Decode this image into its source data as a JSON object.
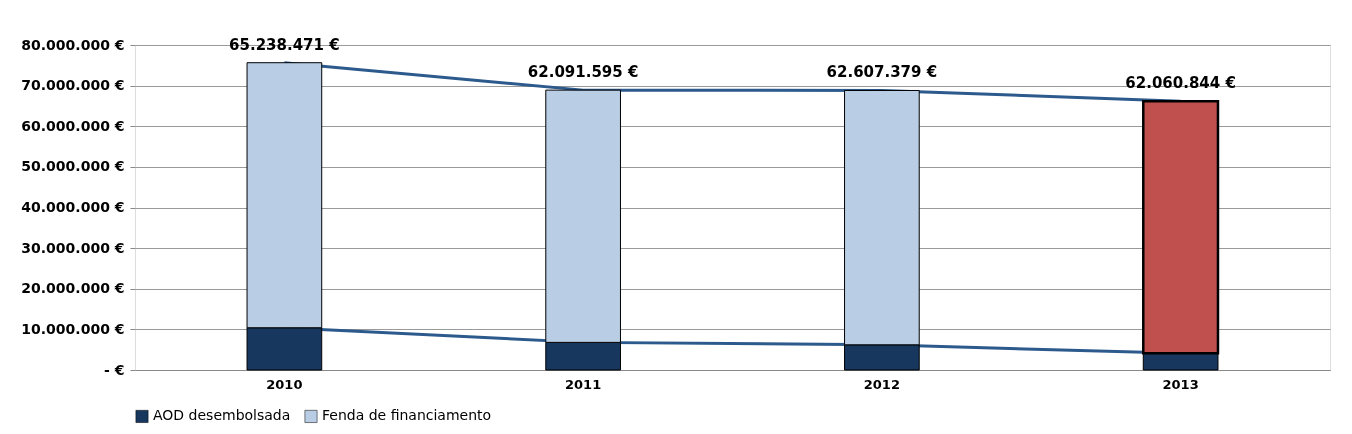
{
  "chart_data": {
    "type": "bar",
    "stacked": true,
    "categories": [
      "2010",
      "2011",
      "2012",
      "2013"
    ],
    "series": [
      {
        "name": "AOD desembolsada",
        "color": "#17375e",
        "values": [
          10400000,
          6800000,
          6200000,
          4100000
        ]
      },
      {
        "name": "Fenda de financiamento",
        "color": "#b9cde5",
        "colors": [
          "#b9cde5",
          "#b9cde5",
          "#b9cde5",
          "#c0504d"
        ],
        "values": [
          65238471,
          62091595,
          62607379,
          62060844
        ],
        "value_labels": [
          "65.238.471 €",
          "62.091.595 €",
          "62.607.379 €",
          "62.060.844 €"
        ]
      }
    ],
    "ylim": [
      0,
      80000000
    ],
    "yticks": [
      {
        "value": 0,
        "label": "- €"
      },
      {
        "value": 10000000,
        "label": "10.000.000 €"
      },
      {
        "value": 20000000,
        "label": "20.000.000 €"
      },
      {
        "value": 30000000,
        "label": "30.000.000 €"
      },
      {
        "value": 40000000,
        "label": "40.000.000 €"
      },
      {
        "value": 50000000,
        "label": "50.000.000 €"
      },
      {
        "value": 60000000,
        "label": "60.000.000 €"
      },
      {
        "value": 70000000,
        "label": "70.000.000 €"
      },
      {
        "value": 80000000,
        "label": "80.000.000 €"
      }
    ],
    "grid": "y",
    "legend": "bottom"
  }
}
